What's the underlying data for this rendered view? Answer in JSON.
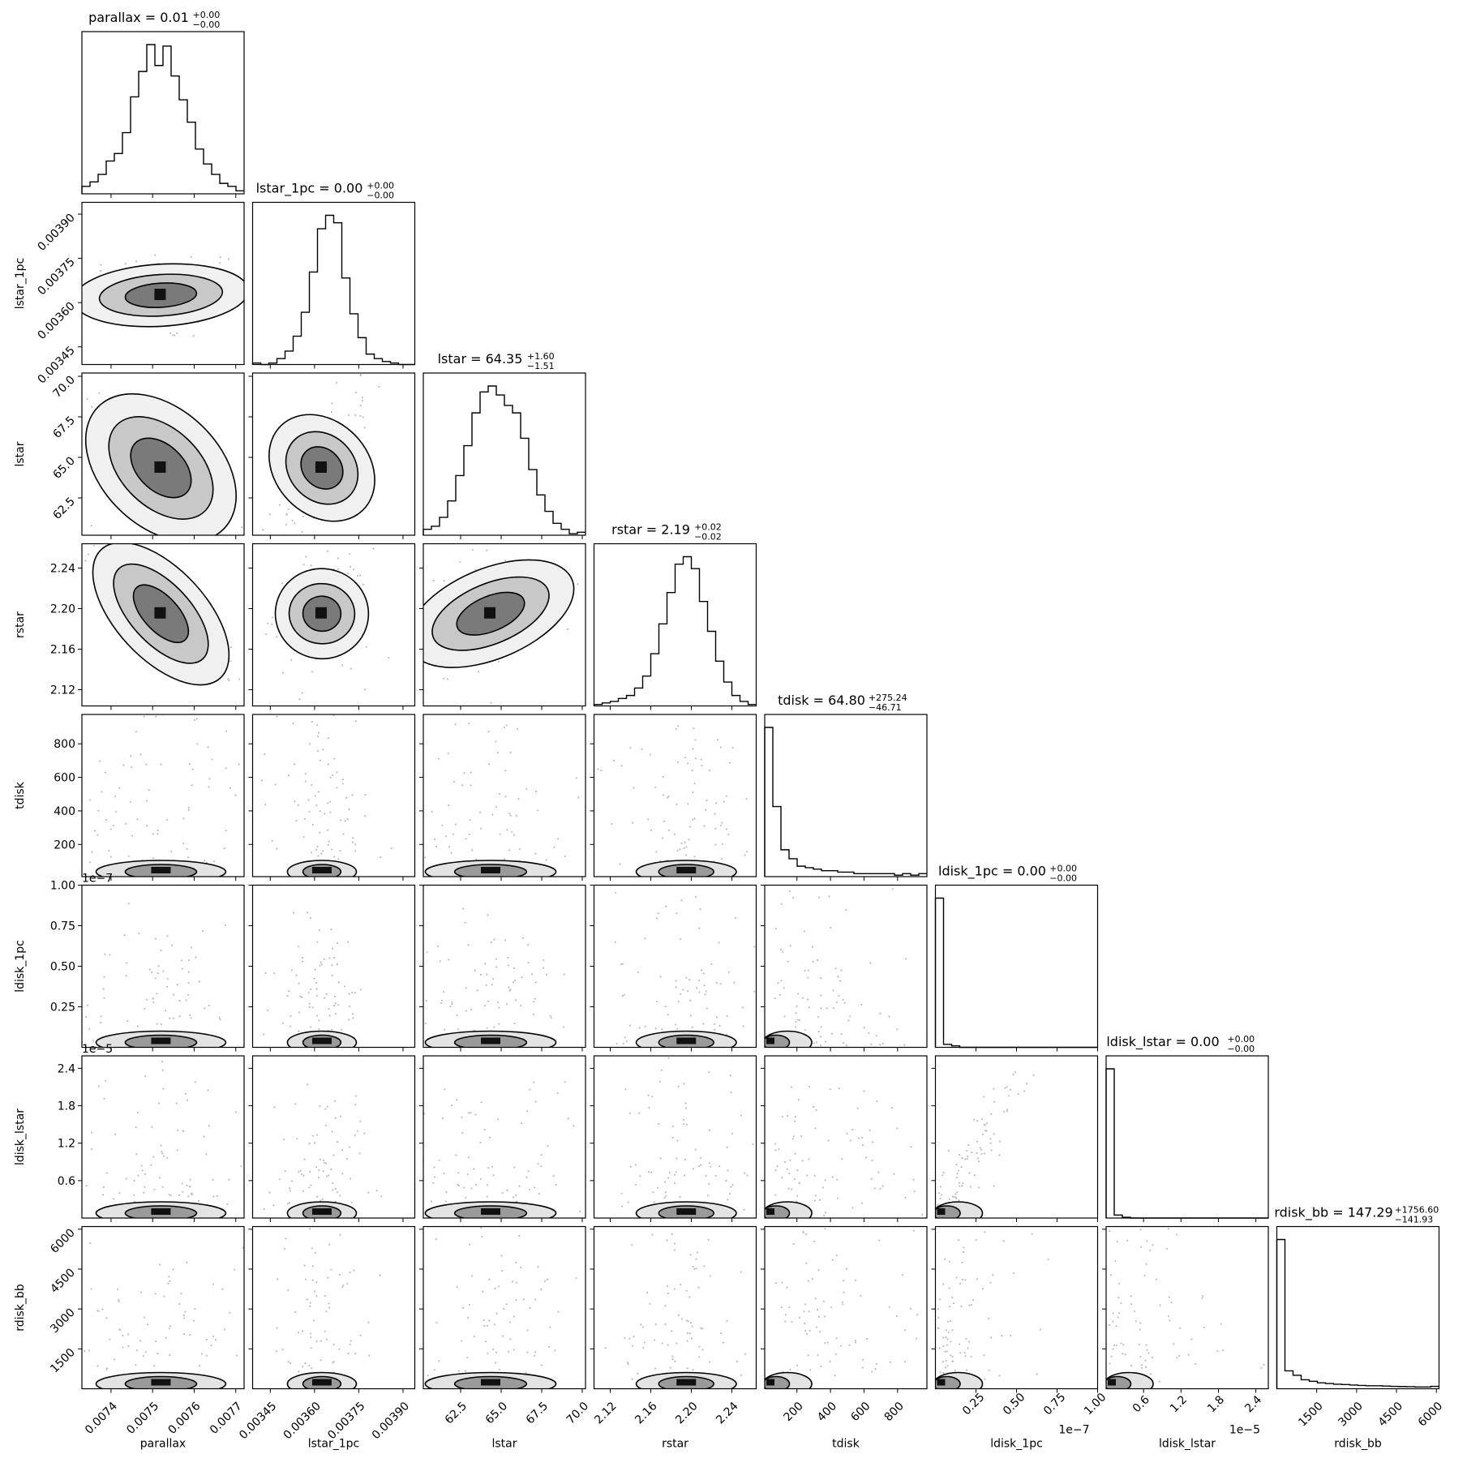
{
  "chart_data": {
    "type": "corner",
    "parameters": [
      {
        "name": "parallax",
        "range": [
          0.00733,
          0.00772
        ],
        "ticks": [
          0.0074,
          0.0075,
          0.0076,
          0.0077
        ],
        "tick_labels": [
          "0.0074",
          "0.0075",
          "0.0076",
          "0.0077"
        ],
        "offset": "",
        "title": "parallax = 0.01",
        "err_up": "+0.00",
        "err_down": "−0.00",
        "median": 0.00752,
        "sigma": 6e-05
      },
      {
        "name": "lstar_1pc",
        "range": [
          0.00339,
          0.00394
        ],
        "ticks": [
          0.00345,
          0.0036,
          0.00375,
          0.0039
        ],
        "tick_labels": [
          "0.00345",
          "0.00360",
          "0.00375",
          "0.00390"
        ],
        "offset": "",
        "title": "lstar_1pc = 0.00",
        "err_up": "+0.00",
        "err_down": "−0.00",
        "median": 0.003625,
        "sigma": 4.5e-05
      },
      {
        "name": "lstar",
        "range": [
          60.2,
          70.2
        ],
        "ticks": [
          62.5,
          65.0,
          67.5,
          70.0
        ],
        "tick_labels": [
          "62.5",
          "65.0",
          "67.5",
          "70.0"
        ],
        "offset": "",
        "title": "lstar = 64.35",
        "err_up": "+1.60",
        "err_down": "−1.51",
        "median": 64.35,
        "sigma": 1.55
      },
      {
        "name": "rstar",
        "range": [
          2.104,
          2.264
        ],
        "ticks": [
          2.12,
          2.16,
          2.2,
          2.24
        ],
        "tick_labels": [
          "2.12",
          "2.16",
          "2.20",
          "2.24"
        ],
        "offset": "",
        "title": "rstar = 2.19",
        "err_up": "+0.02",
        "err_down": "−0.02",
        "median": 2.195,
        "sigma": 0.019
      },
      {
        "name": "tdisk",
        "range": [
          8,
          975
        ],
        "ticks": [
          200,
          400,
          600,
          800
        ],
        "tick_labels": [
          "200",
          "400",
          "600",
          "800"
        ],
        "offset": "",
        "title": "tdisk = 64.80",
        "err_up": "+275.24",
        "err_down": "−46.71",
        "median": 64.8,
        "sigma": 150
      },
      {
        "name": "ldisk_1pc",
        "range": [
          0,
          1e-07
        ],
        "ticks": [
          2.5e-08,
          5e-08,
          7.5e-08,
          1e-07
        ],
        "tick_labels": [
          "0.25",
          "0.50",
          "0.75",
          "1.00"
        ],
        "offset": "1e−7",
        "title": "ldisk_1pc = 0.00",
        "err_up": "+0.00",
        "err_down": "−0.00",
        "median": 1e-09,
        "sigma": 1e-08
      },
      {
        "name": "ldisk_lstar",
        "range": [
          0,
          2.6e-05
        ],
        "ticks": [
          6e-06,
          1.2e-05,
          1.8e-05,
          2.4e-05
        ],
        "tick_labels": [
          "0.6",
          "1.2",
          "1.8",
          "2.4"
        ],
        "offset": "1e−5",
        "title": "ldisk_lstar = 0.00",
        "err_up": "+0.00",
        "err_down": "−0.00",
        "median": 3e-07,
        "sigma": 3e-06
      },
      {
        "name": "rdisk_bb",
        "range": [
          0,
          6100
        ],
        "ticks": [
          1500,
          3000,
          4500,
          6000
        ],
        "tick_labels": [
          "1500",
          "3000",
          "4500",
          "6000"
        ],
        "offset": "",
        "title": "rdisk_bb = 147.29",
        "err_up": "+1756.60",
        "err_down": "−141.93",
        "median": 147.29,
        "sigma": 900
      }
    ],
    "histograms": [
      [
        0.05,
        0.08,
        0.13,
        0.22,
        0.27,
        0.41,
        0.65,
        0.82,
        1.0,
        0.86,
        0.99,
        0.79,
        0.63,
        0.48,
        0.3,
        0.2,
        0.13,
        0.07,
        0.05,
        0.02
      ],
      [
        0.01,
        0.0,
        0.01,
        0.04,
        0.09,
        0.19,
        0.35,
        0.62,
        0.91,
        1.0,
        0.95,
        0.58,
        0.34,
        0.18,
        0.07,
        0.04,
        0.02,
        0.01,
        0.0,
        0.0
      ],
      [
        0.04,
        0.06,
        0.12,
        0.23,
        0.4,
        0.6,
        0.82,
        0.96,
        1.0,
        0.94,
        0.87,
        0.82,
        0.65,
        0.44,
        0.27,
        0.16,
        0.08,
        0.04,
        0.01,
        0.02
      ],
      [
        0.01,
        0.02,
        0.03,
        0.05,
        0.07,
        0.12,
        0.2,
        0.35,
        0.55,
        0.76,
        0.95,
        1.0,
        0.92,
        0.7,
        0.5,
        0.3,
        0.16,
        0.07,
        0.03,
        0.01
      ],
      [
        1.0,
        0.47,
        0.18,
        0.12,
        0.07,
        0.06,
        0.05,
        0.04,
        0.04,
        0.03,
        0.03,
        0.02,
        0.02,
        0.02,
        0.02,
        0.02,
        0.01,
        0.02,
        0.01,
        0.02
      ],
      [
        1.0,
        0.02,
        0.01,
        0.0,
        0.0,
        0.0,
        0.0,
        0.0,
        0.0,
        0.0,
        0.0,
        0.0,
        0.0,
        0.0,
        0.0,
        0.0,
        0.0,
        0.0,
        0.0,
        0.0
      ],
      [
        1.0,
        0.02,
        0.005,
        0.0,
        0.0,
        0.0,
        0.0,
        0.0,
        0.0,
        0.0,
        0.0,
        0.0,
        0.0,
        0.0,
        0.0,
        0.0,
        0.0,
        0.0,
        0.0,
        0.0
      ],
      [
        1.0,
        0.12,
        0.09,
        0.06,
        0.05,
        0.04,
        0.035,
        0.03,
        0.028,
        0.025,
        0.022,
        0.02,
        0.02,
        0.018,
        0.016,
        0.015,
        0.014,
        0.012,
        0.012,
        0.016
      ]
    ],
    "correlations": [
      [
        0,
        0,
        0,
        0,
        0,
        0,
        0,
        0
      ],
      [
        0.05,
        0,
        0,
        0,
        0,
        0,
        0,
        0
      ],
      [
        -0.8,
        0.8,
        0,
        0,
        0,
        0,
        0,
        0
      ],
      [
        -0.9,
        -0.05,
        0.35,
        0,
        0,
        0,
        0,
        0
      ],
      [
        0,
        0,
        0,
        0,
        0,
        0,
        0,
        0
      ],
      [
        0,
        0,
        0,
        0,
        0.0,
        0,
        0,
        0
      ],
      [
        0,
        0,
        0,
        0,
        0.0,
        0.95,
        0,
        0
      ],
      [
        0,
        0,
        0,
        0,
        0.0,
        0.0,
        0.0,
        0
      ]
    ],
    "grid": false,
    "legend": "none"
  }
}
